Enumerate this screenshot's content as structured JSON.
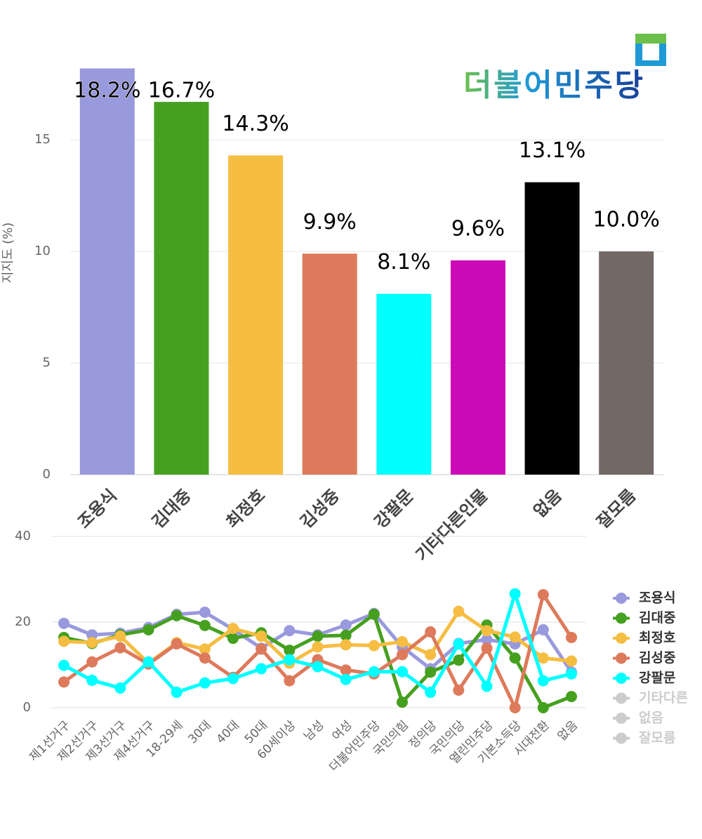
{
  "logo": "더불어민주당",
  "chart_data": [
    {
      "type": "bar",
      "y_label": "지지도 (%)",
      "categories": [
        "조용식",
        "김대중",
        "최정호",
        "김성중",
        "강팔문",
        "기타다른인물",
        "없음",
        "잘모름"
      ],
      "values": [
        18.2,
        16.7,
        14.3,
        9.9,
        8.1,
        9.6,
        13.1,
        10.0
      ],
      "value_labels": [
        "18.2%",
        "16.7%",
        "14.3%",
        "9.9%",
        "8.1%",
        "9.6%",
        "13.1%",
        "10.0%"
      ],
      "colors": [
        "#9999dd",
        "#46a020",
        "#f5bd42",
        "#de7a5c",
        "#00ffff",
        "#cc0ab8",
        "#000000",
        "#736866"
      ],
      "ylim": [
        0,
        19
      ],
      "yticks": [
        0,
        5,
        10,
        15
      ],
      "grid": true
    },
    {
      "type": "line",
      "categories": [
        "제1선거구",
        "제2선거구",
        "제3선거구",
        "제4선거구",
        "18-29세",
        "30대",
        "40대",
        "50대",
        "60세이상",
        "남성",
        "여성",
        "더불어민주당",
        "국민의힘",
        "정의당",
        "국민의당",
        "열린민주당",
        "기본소득당",
        "시대전환",
        "없음"
      ],
      "series": [
        {
          "name": "조용식",
          "color": "#9999dd",
          "visible": true,
          "values": [
            19.7,
            17.0,
            17.4,
            18.7,
            21.8,
            22.3,
            18.3,
            13.9,
            18.0,
            17.0,
            19.3,
            22.0,
            14.2,
            9.1,
            15.0,
            15.9,
            14.9,
            18.2,
            8.3
          ]
        },
        {
          "name": "김대중",
          "color": "#46a020",
          "visible": true,
          "values": [
            16.4,
            15.0,
            17.0,
            18.2,
            21.5,
            19.2,
            16.2,
            17.5,
            13.4,
            16.7,
            16.9,
            21.8,
            1.3,
            8.3,
            11.1,
            19.3,
            11.6,
            0,
            2.6
          ]
        },
        {
          "name": "최정호",
          "color": "#f5bd42",
          "visible": true,
          "values": [
            15.5,
            15.2,
            16.7,
            10.4,
            15.2,
            13.7,
            18.5,
            16.7,
            10.4,
            14.2,
            14.7,
            14.5,
            15.4,
            12.4,
            22.5,
            18.0,
            16.5,
            11.6,
            10.9
          ]
        },
        {
          "name": "김성중",
          "color": "#de7a5c",
          "visible": true,
          "values": [
            6.0,
            10.7,
            14.0,
            10.2,
            14.9,
            11.6,
            7.1,
            13.7,
            6.3,
            11.2,
            8.8,
            7.9,
            12.4,
            17.7,
            4.1,
            13.9,
            0,
            26.4,
            16.4
          ]
        },
        {
          "name": "강팔문",
          "color": "#00ffff",
          "visible": true,
          "values": [
            9.9,
            6.4,
            4.6,
            10.7,
            3.6,
            5.8,
            6.8,
            9.1,
            11.2,
            9.6,
            6.6,
            8.4,
            8.4,
            3.6,
            14.9,
            5.0,
            26.6,
            6.3,
            7.9
          ]
        },
        {
          "name": "기타다른",
          "color": "#cccccc",
          "visible": false,
          "values": [
            null,
            null,
            null,
            null,
            null,
            null,
            null,
            null,
            null,
            null,
            null,
            null,
            null,
            null,
            null,
            null,
            null,
            null,
            null
          ]
        },
        {
          "name": "없음",
          "color": "#cccccc",
          "visible": false,
          "values": [
            null,
            null,
            null,
            null,
            null,
            null,
            null,
            null,
            null,
            null,
            null,
            null,
            null,
            null,
            null,
            null,
            null,
            null,
            null
          ]
        },
        {
          "name": "잘모름",
          "color": "#cccccc",
          "visible": false,
          "values": [
            null,
            null,
            null,
            null,
            null,
            null,
            null,
            null,
            null,
            null,
            null,
            null,
            null,
            null,
            null,
            null,
            null,
            null,
            null
          ]
        }
      ],
      "ylim": [
        0,
        40
      ],
      "yticks": [
        0,
        20,
        40
      ],
      "grid": true
    }
  ]
}
